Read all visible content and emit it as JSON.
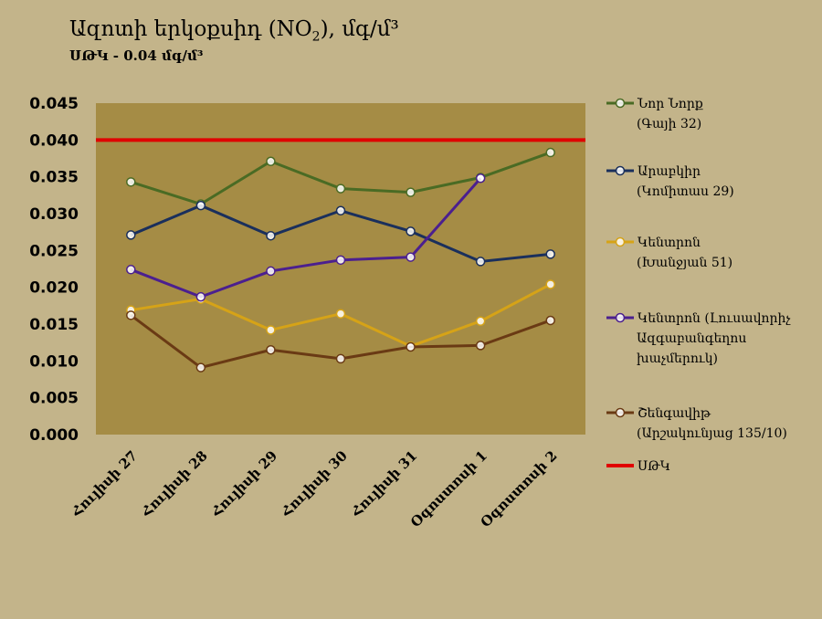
{
  "chart_data": {
    "type": "line",
    "title_main": "Ազոտի երկօքսիդ (NO",
    "title_sub": "2",
    "title_tail": "), մգ/մ³",
    "subtitle": "ՍԹԿ - 0.04 մգ/մ³",
    "categories": [
      "Հուլիսի 27",
      "Հուլիսի 28",
      "Հուլիսի 29",
      "Հուլիսի 30",
      "Հուլիսի 31",
      "Օգոստոսի 1",
      "Օգոստոսի 2"
    ],
    "ylim": [
      0,
      0.045
    ],
    "yticks": [
      "0.000",
      "0.005",
      "0.010",
      "0.015",
      "0.020",
      "0.025",
      "0.030",
      "0.035",
      "0.040",
      "0.045"
    ],
    "plot_background": "#a58c45",
    "grid": false,
    "legend_position": "right",
    "series": [
      {
        "name_lines": [
          "Նոր Նորք",
          "(Գայի 32)"
        ],
        "color": "#4a6b24",
        "values": [
          0.0343,
          0.0313,
          0.0371,
          0.0334,
          0.0329,
          0.0349,
          0.0383
        ]
      },
      {
        "name_lines": [
          "Արաբկիր",
          "(Կոմիտաս 29)"
        ],
        "color": "#1a2f5c",
        "values": [
          0.0271,
          0.0311,
          0.027,
          0.0304,
          0.0276,
          0.0235,
          0.0245
        ]
      },
      {
        "name_lines": [
          "Կենտրոն",
          "(Խանջյան 51)"
        ],
        "color": "#d6a317",
        "values": [
          0.0169,
          0.0184,
          0.0142,
          0.0164,
          0.012,
          0.0154,
          0.0204
        ]
      },
      {
        "name_lines": [
          "Կենտրոն (Լուսավորիչ",
          "Ազգաբանգեղոս",
          "խաչմերուկ)"
        ],
        "color": "#4b1f8f",
        "values": [
          0.0224,
          0.0187,
          0.0222,
          0.0237,
          0.0241,
          0.0348,
          null
        ]
      },
      {
        "name_lines": [
          "Շենգավիթ",
          "(Արշակունյաց 135/10)"
        ],
        "color": "#6a3a14",
        "values": [
          0.0162,
          0.0091,
          0.0115,
          0.0103,
          0.0119,
          0.0121,
          0.0155
        ]
      }
    ],
    "threshold": {
      "name": "ՍԹԿ",
      "value": 0.04,
      "color": "#e00000"
    }
  }
}
